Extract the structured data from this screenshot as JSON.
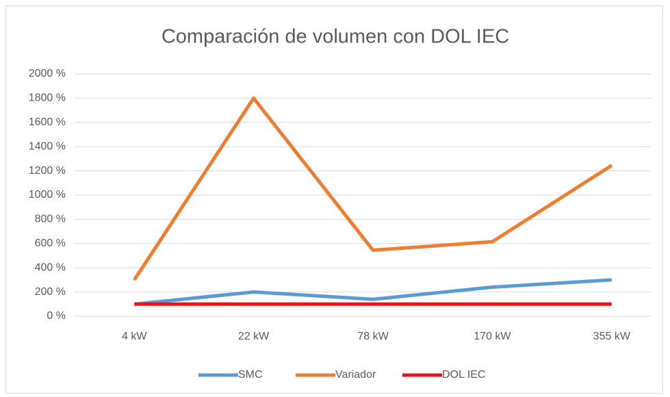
{
  "chart_data": {
    "type": "line",
    "title": "Comparación de volumen con DOL IEC",
    "categories": [
      "4 kW",
      "22 kW",
      "78 kW",
      "170 kW",
      "355 kW"
    ],
    "series": [
      {
        "name": "SMC",
        "color": "#5b9bd5",
        "values": [
          100,
          200,
          140,
          240,
          300
        ]
      },
      {
        "name": "Variador",
        "color": "#ed7d31",
        "values": [
          300,
          1800,
          545,
          615,
          1245
        ]
      },
      {
        "name": "DOL IEC",
        "color": "#e8141b",
        "values": [
          100,
          100,
          100,
          100,
          100
        ]
      }
    ],
    "ylim": [
      0,
      2000
    ],
    "yticks": [
      {
        "value": 0,
        "label": "0 %"
      },
      {
        "value": 200,
        "label": "200 %"
      },
      {
        "value": 400,
        "label": "400 %"
      },
      {
        "value": 600,
        "label": "600 %"
      },
      {
        "value": 800,
        "label": "800 %"
      },
      {
        "value": 1000,
        "label": "1000 %"
      },
      {
        "value": 1200,
        "label": "1200 %"
      },
      {
        "value": 1400,
        "label": "1400 %"
      },
      {
        "value": 1600,
        "label": "1600 %"
      },
      {
        "value": 1800,
        "label": "1800 %"
      },
      {
        "value": 2000,
        "label": "2000 %"
      }
    ],
    "grid": true,
    "legend": "bottom"
  }
}
